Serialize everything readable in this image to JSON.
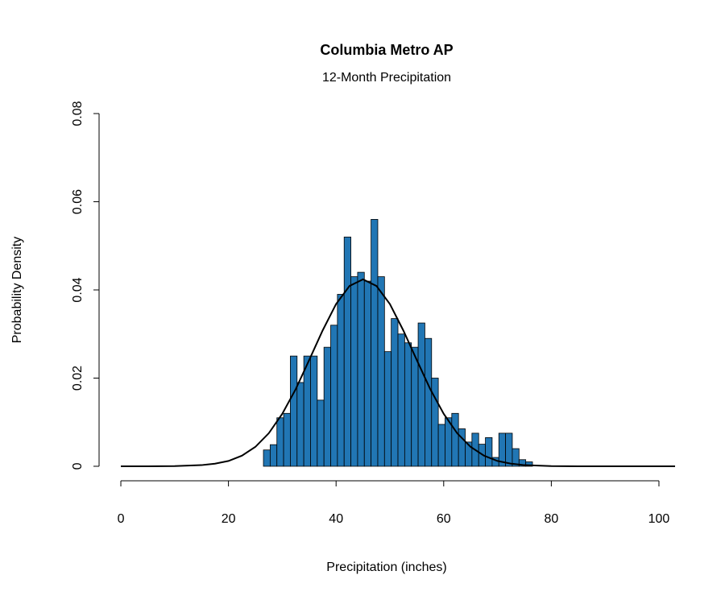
{
  "chart_data": {
    "type": "histogram",
    "title": "Columbia Metro AP",
    "subtitle": "12-Month Precipitation",
    "x_label": "Precipitation (inches)",
    "y_label": "Probability Density",
    "bins": [
      26.5,
      27.75,
      29,
      30.25,
      31.5,
      32.75,
      34,
      35.25,
      36.5,
      37.75,
      39,
      40.25,
      41.5,
      42.75,
      44,
      45.25,
      46.5,
      47.75,
      49,
      50.25,
      51.5,
      52.75,
      54,
      55.25,
      56.5,
      57.75,
      59,
      60.25,
      61.5,
      62.75,
      64,
      65.25,
      66.5,
      67.75,
      69,
      70.25,
      71.5,
      72.75,
      74,
      75.25,
      76.5
    ],
    "values": [
      0.0037,
      0.0049,
      0.011,
      0.012,
      0.025,
      0.019,
      0.025,
      0.025,
      0.015,
      0.027,
      0.032,
      0.039,
      0.052,
      0.043,
      0.044,
      0.042,
      0.056,
      0.043,
      0.026,
      0.0335,
      0.03,
      0.028,
      0.027,
      0.0325,
      0.029,
      0.02,
      0.0095,
      0.011,
      0.012,
      0.0085,
      0.0055,
      0.0075,
      0.005,
      0.0065,
      0.002,
      0.0075,
      0.0075,
      0.004,
      0.0015,
      0.001
    ],
    "color": "#2176b4",
    "curve": {
      "color": "#000000",
      "x": [
        0,
        5,
        10,
        15,
        17.5,
        20,
        22.5,
        25,
        27.5,
        30,
        32.5,
        35,
        37.5,
        40,
        42.5,
        45,
        47.5,
        50,
        52.5,
        55,
        57.5,
        60,
        62.5,
        65,
        67.5,
        70,
        72.5,
        75,
        80,
        85,
        90,
        95,
        100,
        103
      ],
      "y": [
        0,
        0,
        4e-05,
        0.00026,
        0.0006,
        0.0012,
        0.0024,
        0.0044,
        0.0075,
        0.0119,
        0.0175,
        0.0241,
        0.0308,
        0.0368,
        0.0409,
        0.0424,
        0.0409,
        0.0368,
        0.0308,
        0.0241,
        0.0175,
        0.0119,
        0.0075,
        0.0044,
        0.0024,
        0.0012,
        0.0006,
        0.00026,
        4e-05,
        0,
        0,
        0,
        0,
        0
      ]
    },
    "xlim": [
      -4,
      104
    ],
    "ylim": [
      -0.0032,
      0.0832
    ],
    "xticks": [
      0,
      20,
      40,
      60,
      80,
      100
    ],
    "yticks": [
      0,
      0.02,
      0.04,
      0.06,
      0.08
    ]
  }
}
